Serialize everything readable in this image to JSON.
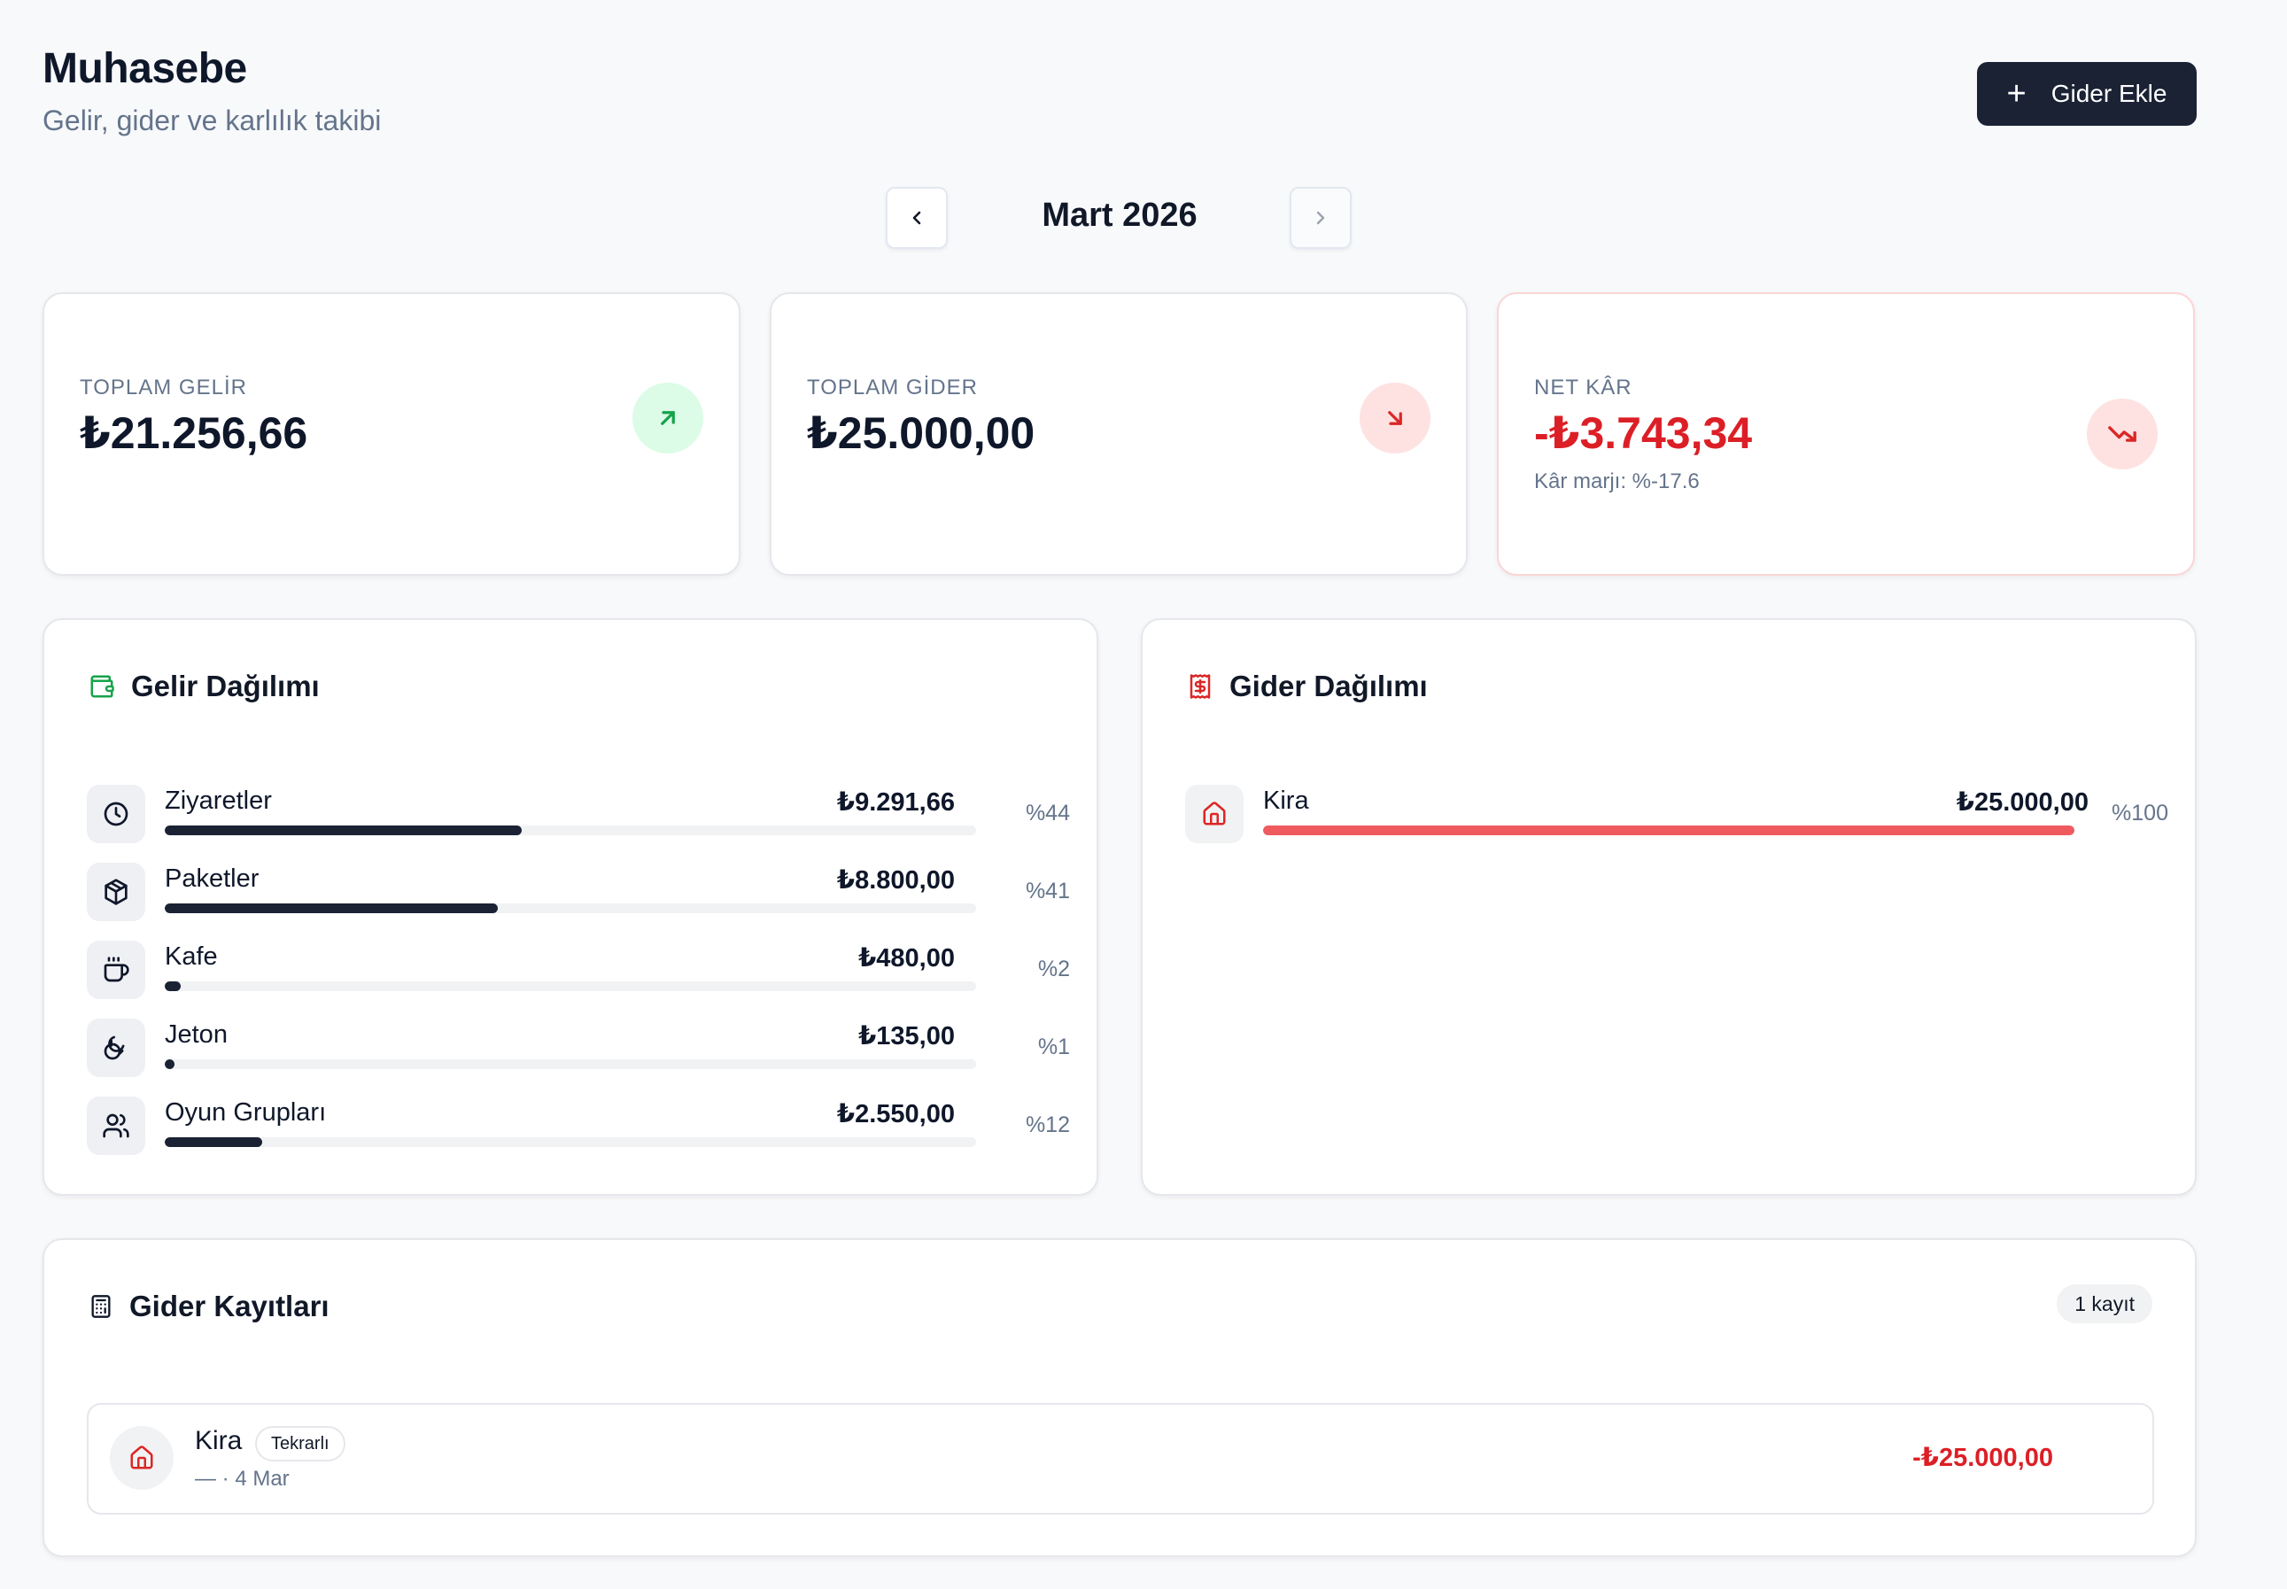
{
  "header": {
    "title": "Muhasebe",
    "subtitle": "Gelir, gider ve karlılık takibi",
    "add_button_label": "Gider Ekle"
  },
  "month_nav": {
    "label": "Mart 2026"
  },
  "stats": {
    "income": {
      "label": "TOPLAM GELİR",
      "value": "₺21.256,66",
      "icon": "arrow-up-right-icon",
      "color": "#16a34a"
    },
    "expense": {
      "label": "TOPLAM GİDER",
      "value": "₺25.000,00",
      "icon": "arrow-down-right-icon",
      "color": "#dc2626"
    },
    "net": {
      "label": "NET KÂR",
      "value": "-₺3.743,34",
      "margin": "Kâr marjı: %-17.6",
      "icon": "trending-down-icon",
      "color": "#dc1f26"
    }
  },
  "income_distribution": {
    "title": "Gelir Dağılımı",
    "items": [
      {
        "name": "Ziyaretler",
        "amount": "₺9.291,66",
        "percent": "%44",
        "share": 0.44,
        "icon": "clock-icon"
      },
      {
        "name": "Paketler",
        "amount": "₺8.800,00",
        "percent": "%41",
        "share": 0.41,
        "icon": "package-icon"
      },
      {
        "name": "Kafe",
        "amount": "₺480,00",
        "percent": "%2",
        "share": 0.02,
        "icon": "coffee-icon"
      },
      {
        "name": "Jeton",
        "amount": "₺135,00",
        "percent": "%1",
        "share": 0.01,
        "icon": "coins-icon"
      },
      {
        "name": "Oyun Grupları",
        "amount": "₺2.550,00",
        "percent": "%12",
        "share": 0.12,
        "icon": "users-icon"
      }
    ]
  },
  "expense_distribution": {
    "title": "Gider Dağılımı",
    "items": [
      {
        "name": "Kira",
        "amount": "₺25.000,00",
        "percent": "%100",
        "share": 1.0,
        "icon": "home-icon"
      }
    ]
  },
  "expense_records": {
    "title": "Gider Kayıtları",
    "count_label": "1 kayıt",
    "rows": [
      {
        "name": "Kira",
        "tag": "Tekrarlı",
        "meta": "— · 4 Mar",
        "amount": "-₺25.000,00",
        "icon": "home-icon"
      }
    ]
  }
}
